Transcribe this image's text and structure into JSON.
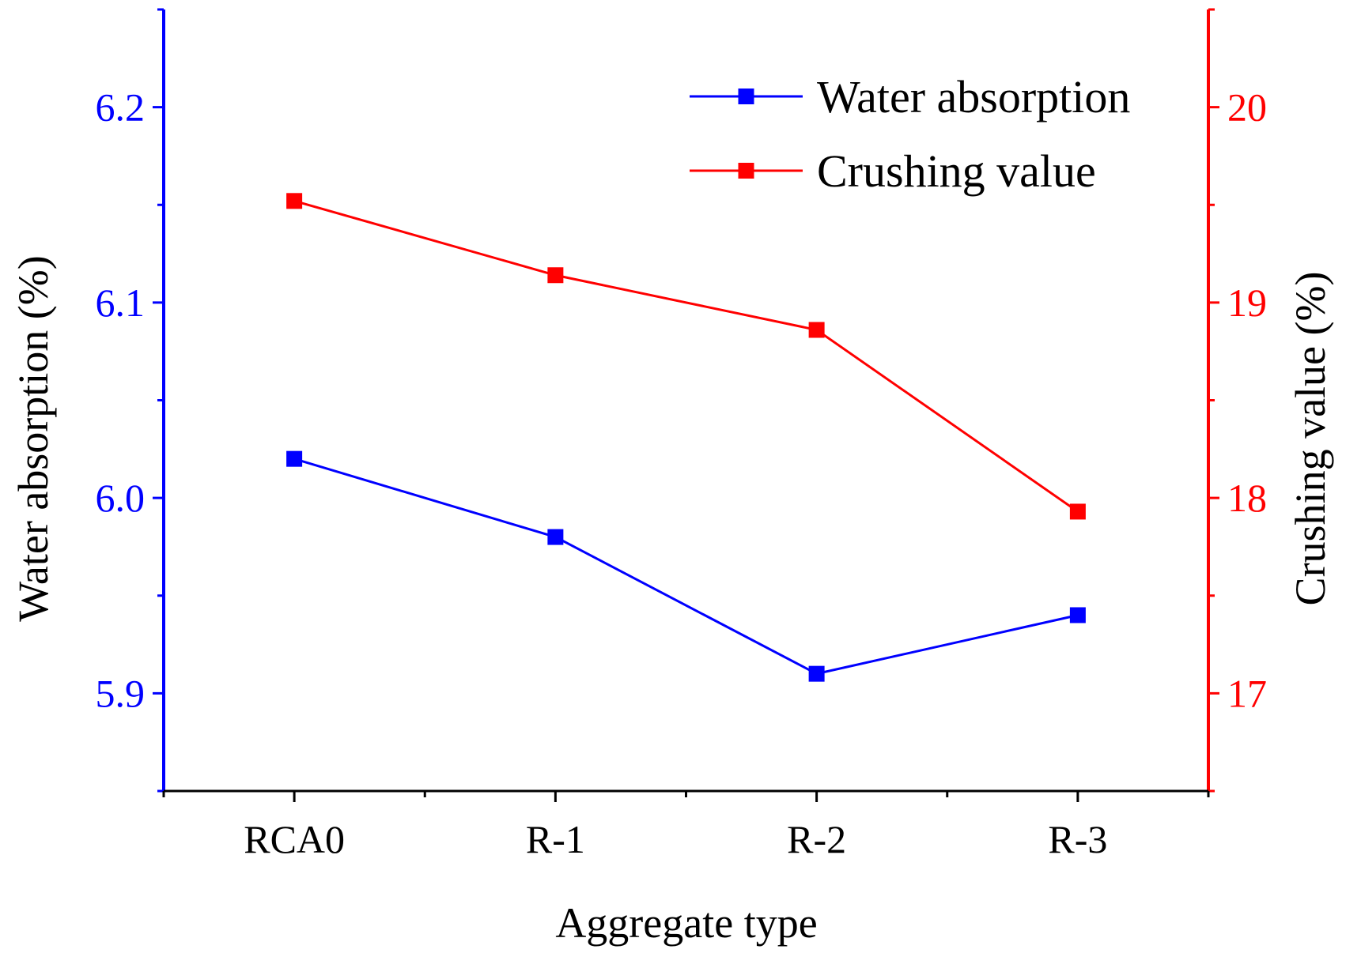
{
  "chart_data": {
    "type": "line",
    "categories": [
      "RCA0",
      "R-1",
      "R-2",
      "R-3"
    ],
    "xlabel": "Aggregate type",
    "series": [
      {
        "name": "Water absorption",
        "axis": "left",
        "color": "#0000ff",
        "marker": "square",
        "values": [
          6.02,
          5.98,
          5.91,
          5.94
        ]
      },
      {
        "name": "Crushing value",
        "axis": "right",
        "color": "#ff0000",
        "marker": "square",
        "values": [
          19.52,
          19.14,
          18.86,
          17.93
        ]
      }
    ],
    "y_left": {
      "label": "Water absorption (%)",
      "range": [
        5.85,
        6.25
      ],
      "ticks": [
        5.9,
        6.0,
        6.1,
        6.2
      ],
      "tick_labels": [
        "5.9",
        "6.0",
        "6.1",
        "6.2"
      ],
      "minor_step": 0.05,
      "color": "#0000ff"
    },
    "y_right": {
      "label": "Crushing value (%)",
      "range": [
        16.5,
        20.5
      ],
      "ticks": [
        17,
        18,
        19,
        20
      ],
      "tick_labels": [
        "17",
        "18",
        "19",
        "20"
      ],
      "minor_step": 0.5,
      "color": "#ff0000"
    },
    "legend": {
      "position": "top-right",
      "entries": [
        "Water absorption",
        "Crushing value"
      ]
    },
    "grid": false
  }
}
